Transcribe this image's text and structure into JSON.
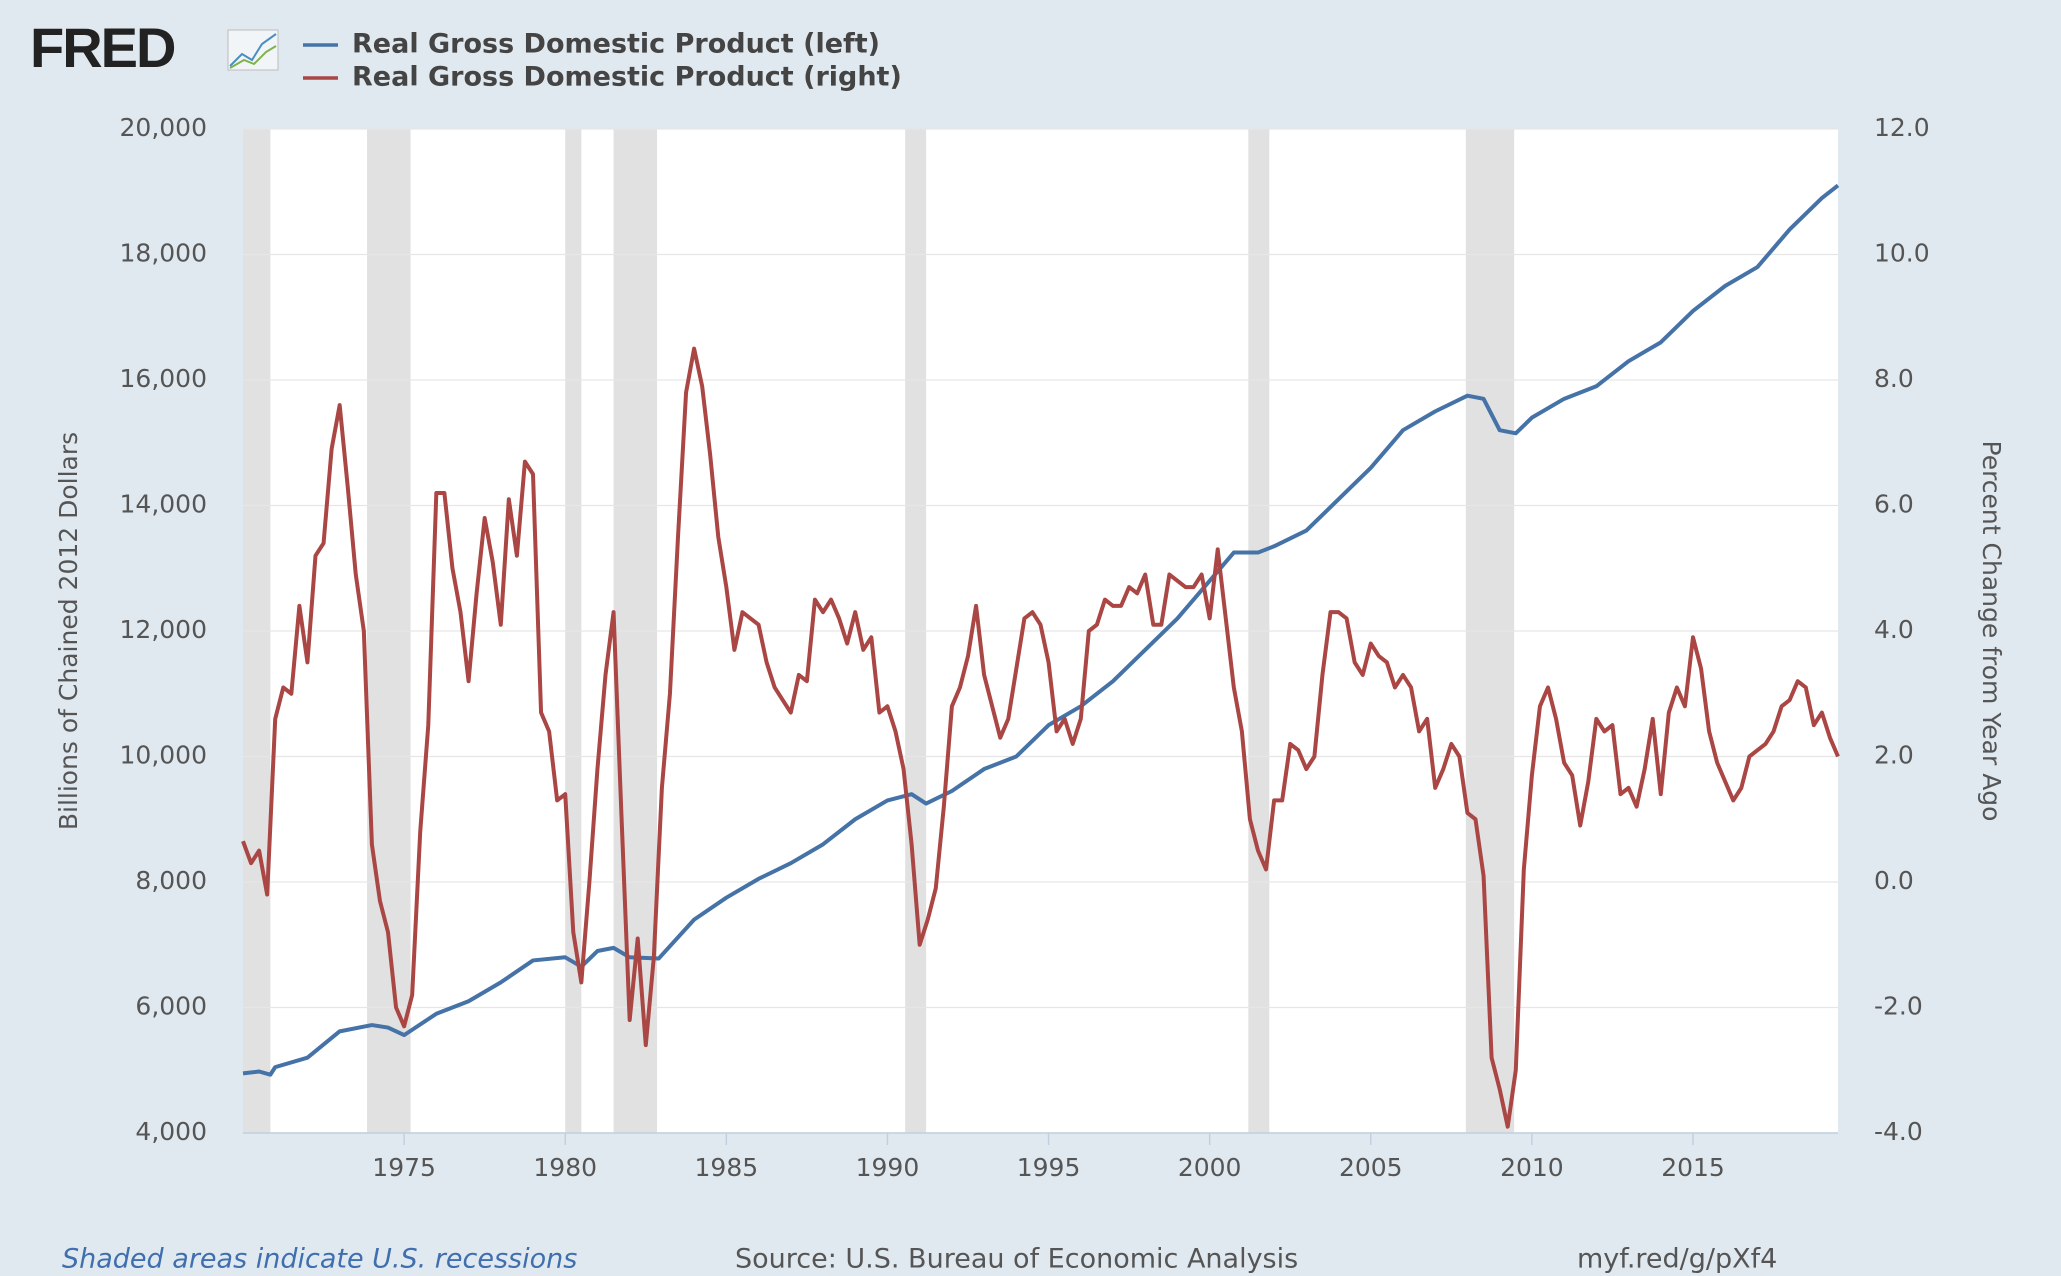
{
  "chart_data": {
    "type": "line",
    "logo": "FRED",
    "left_axis_label": "Billions of Chained 2012 Dollars",
    "right_axis_label": "Percent Change from Year Ago",
    "footer_left": "Shaded areas indicate U.S. recessions",
    "footer_center": "Source: U.S. Bureau of Economic Analysis",
    "footer_right": "myf.red/g/pXf4",
    "xlim": [
      1970,
      2019.5
    ],
    "xticks": [
      1975,
      1980,
      1985,
      1990,
      1995,
      2000,
      2005,
      2010,
      2015
    ],
    "ylim": [
      4000,
      20000
    ],
    "yticks": [
      {
        "value": 4000,
        "label": "4,000"
      },
      {
        "value": 6000,
        "label": "6,000"
      },
      {
        "value": 8000,
        "label": "8,000"
      },
      {
        "value": 10000,
        "label": "10,000"
      },
      {
        "value": 12000,
        "label": "12,000"
      },
      {
        "value": 14000,
        "label": "14,000"
      },
      {
        "value": 16000,
        "label": "16,000"
      },
      {
        "value": 18000,
        "label": "18,000"
      },
      {
        "value": 20000,
        "label": "20,000"
      }
    ],
    "y2lim": [
      -4,
      12
    ],
    "y2ticks": [
      {
        "value": -4,
        "label": "-4.0"
      },
      {
        "value": -2,
        "label": "-2.0"
      },
      {
        "value": 0,
        "label": "0.0"
      },
      {
        "value": 2,
        "label": "2.0"
      },
      {
        "value": 4,
        "label": "4.0"
      },
      {
        "value": 6,
        "label": "6.0"
      },
      {
        "value": 8,
        "label": "8.0"
      },
      {
        "value": 10,
        "label": "10.0"
      },
      {
        "value": 12,
        "label": "12.0"
      }
    ],
    "grid": true,
    "recession_color": "#e1e1e1",
    "recessions": [
      [
        1970,
        1970.85
      ],
      [
        1973.85,
        1975.2
      ],
      [
        1980,
        1980.5
      ],
      [
        1981.5,
        1982.85
      ],
      [
        1990.55,
        1991.2
      ],
      [
        2001.2,
        2001.85
      ],
      [
        2007.95,
        2009.45
      ]
    ],
    "series": [
      {
        "name": "Real Gross Domestic Product (left)",
        "color": "#4572a7",
        "axis": "y",
        "x": [
          1970,
          1970.5,
          1970.85,
          1971,
          1972,
          1973,
          1974,
          1974.5,
          1975,
          1976,
          1977,
          1978,
          1979,
          1980,
          1980.5,
          1981,
          1981.5,
          1982,
          1982.9,
          1984,
          1985,
          1986,
          1987,
          1988,
          1989,
          1990,
          1990.75,
          1991.2,
          1992,
          1993,
          1994,
          1995,
          1996,
          1997,
          1998,
          1999,
          2000,
          2000.75,
          2001.5,
          2002,
          2003,
          2004,
          2005,
          2006,
          2007,
          2008,
          2008.5,
          2009,
          2009.5,
          2010,
          2011,
          2012,
          2013,
          2014,
          2015,
          2016,
          2017,
          2018,
          2019,
          2019.5
        ],
        "values": [
          4950,
          4980,
          4930,
          5050,
          5200,
          5620,
          5720,
          5680,
          5560,
          5900,
          6100,
          6400,
          6750,
          6800,
          6650,
          6900,
          6950,
          6800,
          6780,
          7400,
          7750,
          8050,
          8300,
          8600,
          9000,
          9300,
          9400,
          9250,
          9450,
          9800,
          10000,
          10500,
          10800,
          11200,
          11700,
          12200,
          12800,
          13250,
          13250,
          13350,
          13600,
          14100,
          14600,
          15200,
          15500,
          15750,
          15700,
          15200,
          15150,
          15400,
          15700,
          15900,
          16300,
          16600,
          17100,
          17500,
          17800,
          18400,
          18900,
          19100
        ]
      },
      {
        "name": "Real Gross Domestic Product (right)",
        "color": "#aa4643",
        "axis": "y2",
        "x": [
          1970,
          1970.25,
          1970.5,
          1970.75,
          1971,
          1971.25,
          1971.5,
          1971.75,
          1972,
          1972.25,
          1972.5,
          1972.75,
          1973,
          1973.25,
          1973.5,
          1973.75,
          1974,
          1974.25,
          1974.5,
          1974.75,
          1975,
          1975.25,
          1975.5,
          1975.75,
          1976,
          1976.25,
          1976.5,
          1976.75,
          1977,
          1977.25,
          1977.5,
          1977.75,
          1978,
          1978.25,
          1978.5,
          1978.75,
          1979,
          1979.25,
          1979.5,
          1979.75,
          1980,
          1980.25,
          1980.5,
          1980.75,
          1981,
          1981.25,
          1981.5,
          1981.75,
          1982,
          1982.25,
          1982.5,
          1982.75,
          1983,
          1983.25,
          1983.5,
          1983.75,
          1984,
          1984.25,
          1984.5,
          1984.75,
          1985,
          1985.25,
          1985.5,
          1985.75,
          1986,
          1986.25,
          1986.5,
          1986.75,
          1987,
          1987.25,
          1987.5,
          1987.75,
          1988,
          1988.25,
          1988.5,
          1988.75,
          1989,
          1989.25,
          1989.5,
          1989.75,
          1990,
          1990.25,
          1990.5,
          1990.75,
          1991,
          1991.25,
          1991.5,
          1991.75,
          1992,
          1992.25,
          1992.5,
          1992.75,
          1993,
          1993.25,
          1993.5,
          1993.75,
          1994,
          1994.25,
          1994.5,
          1994.75,
          1995,
          1995.25,
          1995.5,
          1995.75,
          1996,
          1996.25,
          1996.5,
          1996.75,
          1997,
          1997.25,
          1997.5,
          1997.75,
          1998,
          1998.25,
          1998.5,
          1998.75,
          1999,
          1999.25,
          1999.5,
          1999.75,
          2000,
          2000.25,
          2000.5,
          2000.75,
          2001,
          2001.25,
          2001.5,
          2001.75,
          2002,
          2002.25,
          2002.5,
          2002.75,
          2003,
          2003.25,
          2003.5,
          2003.75,
          2004,
          2004.25,
          2004.5,
          2004.75,
          2005,
          2005.25,
          2005.5,
          2005.75,
          2006,
          2006.25,
          2006.5,
          2006.75,
          2007,
          2007.25,
          2007.5,
          2007.75,
          2008,
          2008.25,
          2008.5,
          2008.75,
          2009,
          2009.25,
          2009.5,
          2009.75,
          2010,
          2010.25,
          2010.5,
          2010.75,
          2011,
          2011.25,
          2011.5,
          2011.75,
          2012,
          2012.25,
          2012.5,
          2012.75,
          2013,
          2013.25,
          2013.5,
          2013.75,
          2014,
          2014.25,
          2014.5,
          2014.75,
          2015,
          2015.25,
          2015.5,
          2015.75,
          2016,
          2016.25,
          2016.5,
          2016.75,
          2017,
          2017.25,
          2017.5,
          2017.75,
          2018,
          2018.25,
          2018.5,
          2018.75,
          2019,
          2019.25,
          2019.5
        ],
        "values": [
          0.65,
          0.3,
          0.5,
          -0.2,
          2.6,
          3.1,
          3.0,
          4.4,
          3.5,
          5.2,
          5.4,
          6.9,
          7.6,
          6.3,
          4.9,
          4.0,
          0.6,
          -0.3,
          -0.8,
          -2.0,
          -2.3,
          -1.8,
          0.8,
          2.5,
          6.2,
          6.2,
          5.0,
          4.3,
          3.2,
          4.6,
          5.8,
          5.1,
          4.1,
          6.1,
          5.2,
          6.7,
          6.5,
          2.7,
          2.4,
          1.3,
          1.4,
          -0.8,
          -1.6,
          0.0,
          1.8,
          3.3,
          4.3,
          1.0,
          -2.2,
          -0.9,
          -2.6,
          -1.2,
          1.5,
          3.0,
          5.5,
          7.8,
          8.5,
          7.9,
          6.8,
          5.5,
          4.7,
          3.7,
          4.3,
          4.2,
          4.1,
          3.5,
          3.1,
          2.9,
          2.7,
          3.3,
          3.2,
          4.5,
          4.3,
          4.5,
          4.2,
          3.8,
          4.3,
          3.7,
          3.9,
          2.7,
          2.8,
          2.4,
          1.8,
          0.6,
          -1.0,
          -0.6,
          -0.1,
          1.2,
          2.8,
          3.1,
          3.6,
          4.4,
          3.3,
          2.8,
          2.3,
          2.6,
          3.4,
          4.2,
          4.3,
          4.1,
          3.5,
          2.4,
          2.6,
          2.2,
          2.6,
          4.0,
          4.1,
          4.5,
          4.4,
          4.4,
          4.7,
          4.6,
          4.9,
          4.1,
          4.1,
          4.9,
          4.8,
          4.7,
          4.7,
          4.9,
          4.2,
          5.3,
          4.2,
          3.1,
          2.4,
          1.0,
          0.5,
          0.2,
          1.3,
          1.3,
          2.2,
          2.1,
          1.8,
          2.0,
          3.3,
          4.3,
          4.3,
          4.2,
          3.5,
          3.3,
          3.8,
          3.6,
          3.5,
          3.1,
          3.3,
          3.1,
          2.4,
          2.6,
          1.5,
          1.8,
          2.2,
          2.0,
          1.1,
          1.0,
          0.1,
          -2.8,
          -3.3,
          -3.9,
          -3.0,
          0.2,
          1.7,
          2.8,
          3.1,
          2.6,
          1.9,
          1.7,
          0.9,
          1.6,
          2.6,
          2.4,
          2.5,
          1.4,
          1.5,
          1.2,
          1.8,
          2.6,
          1.4,
          2.7,
          3.1,
          2.8,
          3.9,
          3.4,
          2.4,
          1.9,
          1.6,
          1.3,
          1.5,
          2.0,
          2.1,
          2.2,
          2.4,
          2.8,
          2.9,
          3.2,
          3.1,
          2.5,
          2.7,
          2.3,
          2.0
        ]
      }
    ]
  }
}
